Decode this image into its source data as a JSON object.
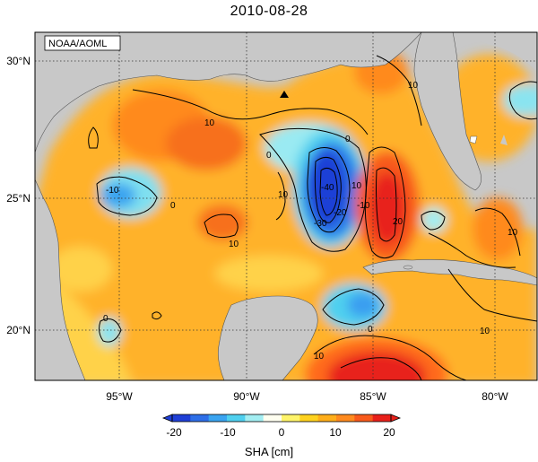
{
  "title": "2010-08-28",
  "credit": "NOAA/AOML",
  "map": {
    "lat_ticks": [
      "30°N",
      "25°N",
      "20°N"
    ],
    "lon_ticks": [
      "95°W",
      "90°W",
      "85°W",
      "80°W"
    ],
    "contour_labels": [
      "10",
      "10",
      "10",
      "10",
      "10",
      "10",
      "0",
      "0",
      "0",
      "0",
      "0",
      "-10",
      "-20",
      "-30",
      "-40",
      "20",
      "10",
      "-10",
      "10"
    ]
  },
  "colorbar": {
    "label": "SHA [cm]",
    "ticks": [
      "-20",
      "-10",
      "0",
      "10",
      "20"
    ],
    "range": [
      -25,
      25
    ],
    "colors": [
      "#1f3fd6",
      "#2e6fe8",
      "#3aa4f0",
      "#4fd0ef",
      "#a3eef2",
      "#fffff0",
      "#fff46a",
      "#ffd21f",
      "#ffae1a",
      "#ff8a1f",
      "#f85a1c",
      "#e8201a"
    ]
  }
}
